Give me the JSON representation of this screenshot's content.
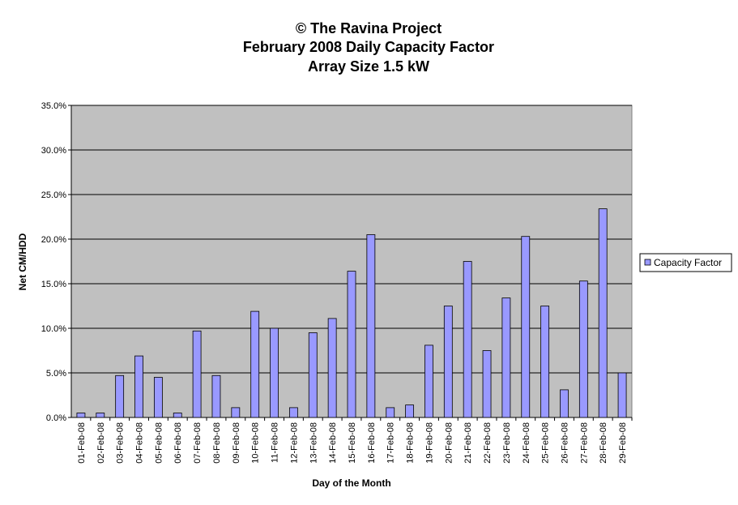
{
  "chart_data": {
    "type": "bar",
    "title": [
      "© The Ravina Project",
      "February 2008 Daily Capacity Factor",
      "Array Size 1.5 kW"
    ],
    "xlabel": "Day of the Month",
    "ylabel": "Net CM/HDD",
    "categories": [
      "01-Feb-08",
      "02-Feb-08",
      "03-Feb-08",
      "04-Feb-08",
      "05-Feb-08",
      "06-Feb-08",
      "07-Feb-08",
      "08-Feb-08",
      "09-Feb-08",
      "10-Feb-08",
      "11-Feb-08",
      "12-Feb-08",
      "13-Feb-08",
      "14-Feb-08",
      "15-Feb-08",
      "16-Feb-08",
      "17-Feb-08",
      "18-Feb-08",
      "19-Feb-08",
      "20-Feb-08",
      "21-Feb-08",
      "22-Feb-08",
      "23-Feb-08",
      "24-Feb-08",
      "25-Feb-08",
      "26-Feb-08",
      "27-Feb-08",
      "28-Feb-08",
      "29-Feb-08"
    ],
    "series": [
      {
        "name": "Capacity Factor",
        "color": "#9999ff",
        "values": [
          0.5,
          0.5,
          4.7,
          6.9,
          4.5,
          0.5,
          9.7,
          4.7,
          1.1,
          11.9,
          10.0,
          1.1,
          9.5,
          11.1,
          16.4,
          20.5,
          1.1,
          1.4,
          8.1,
          12.5,
          17.5,
          7.5,
          13.4,
          20.3,
          12.5,
          3.1,
          15.3,
          23.4,
          5.0
        ]
      }
    ],
    "ylim": [
      0,
      35
    ],
    "yticks": [
      {
        "value": 0,
        "label": "0.0%"
      },
      {
        "value": 5,
        "label": "5.0%"
      },
      {
        "value": 10,
        "label": "10.0%"
      },
      {
        "value": 15,
        "label": "15.0%"
      },
      {
        "value": 20,
        "label": "20.0%"
      },
      {
        "value": 25,
        "label": "25.0%"
      },
      {
        "value": 30,
        "label": "30.0%"
      },
      {
        "value": 35,
        "label": "35.0%"
      }
    ],
    "grid": true,
    "legend": "right",
    "plot_background": "#c0c0c0"
  }
}
